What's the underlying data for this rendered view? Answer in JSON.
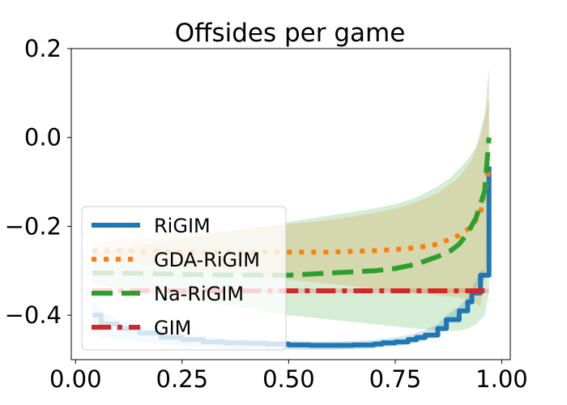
{
  "chart_data": {
    "type": "line",
    "title": "Offsides per game",
    "xlabel": "",
    "ylabel": "",
    "xlim": [
      -0.01,
      1.02
    ],
    "ylim": [
      -0.5,
      0.2
    ],
    "x_ticks": [
      0.0,
      0.25,
      0.5,
      0.75,
      1.0
    ],
    "x_tick_labels": [
      "0.00",
      "0.25",
      "0.50",
      "0.75",
      "1.00"
    ],
    "y_ticks": [
      -0.4,
      -0.2,
      0.0,
      0.2
    ],
    "y_tick_labels": [
      "−0.4",
      "−0.2",
      "0.0",
      "0.2"
    ],
    "grid": false,
    "legend_position": "lower-left",
    "series": [
      {
        "name": "RiGIM",
        "color": "#1f77b4",
        "style": "solid",
        "x": [
          0.04,
          0.06,
          0.1,
          0.15,
          0.2,
          0.25,
          0.3,
          0.35,
          0.4,
          0.45,
          0.5,
          0.55,
          0.6,
          0.65,
          0.7,
          0.72,
          0.75,
          0.78,
          0.8,
          0.82,
          0.85,
          0.87,
          0.9,
          0.92,
          0.93,
          0.95,
          0.96,
          0.97
        ],
        "y": [
          -0.4,
          -0.42,
          -0.43,
          -0.44,
          -0.45,
          -0.455,
          -0.46,
          -0.462,
          -0.463,
          -0.465,
          -0.467,
          -0.468,
          -0.468,
          -0.467,
          -0.465,
          -0.462,
          -0.46,
          -0.455,
          -0.45,
          -0.445,
          -0.43,
          -0.41,
          -0.39,
          -0.37,
          -0.35,
          -0.31,
          -0.31,
          -0.065
        ],
        "band_upper": [
          -0.37,
          -0.39,
          -0.41,
          -0.425,
          -0.435,
          -0.442,
          -0.448,
          -0.452,
          -0.455,
          -0.457,
          -0.458,
          -0.459,
          -0.459,
          -0.458,
          -0.456,
          -0.453,
          -0.45,
          -0.445,
          -0.44,
          -0.434,
          -0.42,
          -0.4,
          -0.38,
          -0.36,
          -0.34,
          -0.3,
          -0.3,
          -0.06
        ],
        "band_lower": [
          -0.43,
          -0.45,
          -0.455,
          -0.46,
          -0.465,
          -0.47,
          -0.473,
          -0.474,
          -0.475,
          -0.476,
          -0.477,
          -0.478,
          -0.478,
          -0.477,
          -0.475,
          -0.472,
          -0.47,
          -0.466,
          -0.462,
          -0.457,
          -0.44,
          -0.42,
          -0.4,
          -0.38,
          -0.36,
          -0.32,
          -0.32,
          -0.07
        ]
      },
      {
        "name": "GDA-RiGIM",
        "color": "#ff7f0e",
        "style": "dotted",
        "x": [
          0.04,
          0.1,
          0.2,
          0.3,
          0.4,
          0.5,
          0.6,
          0.7,
          0.75,
          0.8,
          0.85,
          0.9,
          0.93,
          0.95,
          0.97
        ],
        "y": [
          -0.255,
          -0.255,
          -0.257,
          -0.258,
          -0.258,
          -0.258,
          -0.258,
          -0.255,
          -0.252,
          -0.248,
          -0.24,
          -0.22,
          -0.2,
          -0.17,
          -0.07
        ],
        "band_upper": [
          -0.24,
          -0.23,
          -0.225,
          -0.215,
          -0.205,
          -0.195,
          -0.185,
          -0.17,
          -0.16,
          -0.145,
          -0.125,
          -0.09,
          -0.05,
          0.0,
          0.09
        ],
        "band_lower": [
          -0.27,
          -0.28,
          -0.29,
          -0.3,
          -0.31,
          -0.32,
          -0.33,
          -0.34,
          -0.345,
          -0.35,
          -0.355,
          -0.36,
          -0.37,
          -0.38,
          -0.26
        ]
      },
      {
        "name": "Na-RiGIM",
        "color": "#2ca02c",
        "style": "dashed",
        "x": [
          0.04,
          0.1,
          0.2,
          0.3,
          0.4,
          0.5,
          0.6,
          0.7,
          0.75,
          0.8,
          0.85,
          0.88,
          0.9,
          0.92,
          0.94,
          0.96,
          0.97
        ],
        "y": [
          -0.305,
          -0.305,
          -0.307,
          -0.309,
          -0.31,
          -0.31,
          -0.305,
          -0.3,
          -0.295,
          -0.285,
          -0.268,
          -0.255,
          -0.24,
          -0.215,
          -0.18,
          -0.12,
          0.0
        ],
        "band_upper": [
          -0.26,
          -0.25,
          -0.235,
          -0.22,
          -0.205,
          -0.19,
          -0.175,
          -0.16,
          -0.15,
          -0.135,
          -0.11,
          -0.09,
          -0.07,
          -0.05,
          -0.02,
          0.05,
          0.16
        ],
        "band_lower": [
          -0.33,
          -0.34,
          -0.355,
          -0.37,
          -0.385,
          -0.4,
          -0.41,
          -0.42,
          -0.425,
          -0.43,
          -0.435,
          -0.435,
          -0.435,
          -0.43,
          -0.42,
          -0.4,
          -0.35
        ]
      },
      {
        "name": "GIM",
        "color": "#d62728",
        "style": "dashdot",
        "x": [
          0.04,
          0.97
        ],
        "y": [
          -0.345,
          -0.345
        ],
        "band_upper": [
          -0.34,
          -0.34
        ],
        "band_lower": [
          -0.35,
          -0.35
        ]
      }
    ]
  }
}
